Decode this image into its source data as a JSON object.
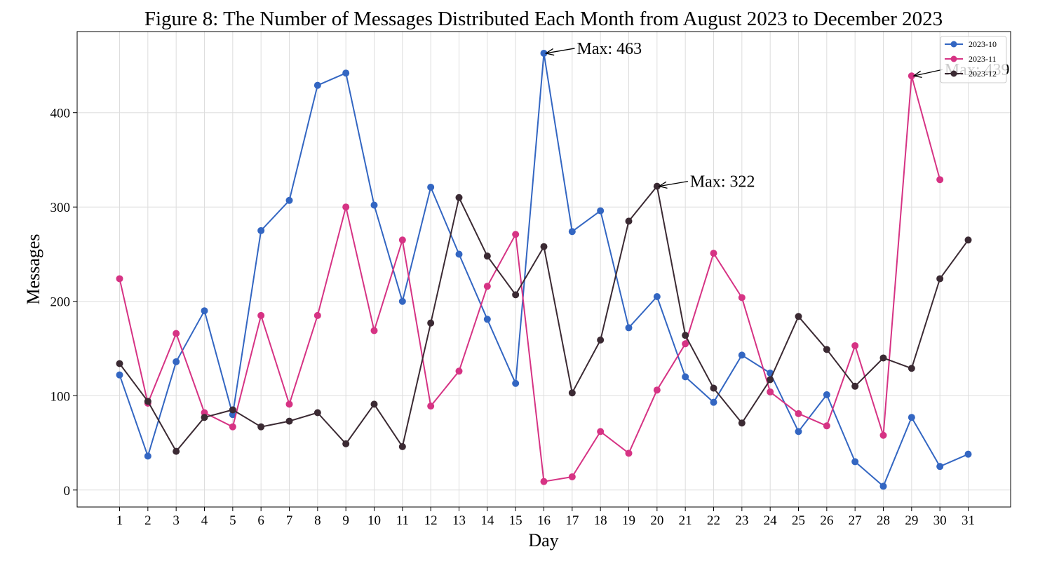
{
  "chart_data": {
    "type": "line",
    "title": "Figure 8: The Number of Messages Distributed Each Month from August 2023 to December 2023",
    "xlabel": "Day",
    "ylabel": "Messages",
    "xlim": [
      -0.5,
      32.5
    ],
    "ylim": [
      -18,
      486
    ],
    "x_ticks": [
      1,
      2,
      3,
      4,
      5,
      6,
      7,
      8,
      9,
      10,
      11,
      12,
      13,
      14,
      15,
      16,
      17,
      18,
      19,
      20,
      21,
      22,
      23,
      24,
      25,
      26,
      27,
      28,
      29,
      30,
      31
    ],
    "y_ticks": [
      0,
      100,
      200,
      300,
      400
    ],
    "grid": true,
    "legend_position": "top-right",
    "series": [
      {
        "name": "2023-10",
        "color": "#3366c2",
        "x": [
          1,
          2,
          3,
          4,
          5,
          6,
          7,
          8,
          9,
          10,
          11,
          12,
          13,
          14,
          15,
          16,
          17,
          18,
          19,
          20,
          21,
          22,
          23,
          24,
          25,
          26,
          27,
          28,
          29,
          30,
          31
        ],
        "values": [
          122,
          36,
          136,
          190,
          80,
          275,
          307,
          429,
          442,
          302,
          200,
          321,
          250,
          181,
          113,
          463,
          274,
          296,
          172,
          205,
          120,
          93,
          143,
          124,
          62,
          101,
          30,
          4,
          77,
          25,
          38
        ]
      },
      {
        "name": "2023-11",
        "color": "#d63384",
        "x": [
          1,
          2,
          3,
          4,
          5,
          6,
          7,
          8,
          9,
          10,
          11,
          12,
          13,
          14,
          15,
          16,
          17,
          18,
          19,
          20,
          21,
          22,
          23,
          24,
          25,
          26,
          27,
          28,
          29,
          30
        ],
        "values": [
          224,
          92,
          166,
          82,
          67,
          185,
          91,
          185,
          300,
          169,
          265,
          89,
          126,
          216,
          271,
          9,
          14,
          62,
          39,
          106,
          155,
          251,
          204,
          104,
          81,
          68,
          153,
          58,
          439,
          329
        ]
      },
      {
        "name": "2023-12",
        "color": "#3b2a33",
        "x": [
          1,
          2,
          3,
          4,
          5,
          6,
          7,
          8,
          9,
          10,
          11,
          12,
          13,
          14,
          15,
          16,
          17,
          18,
          19,
          20,
          21,
          22,
          23,
          24,
          25,
          26,
          27,
          28,
          29,
          30,
          31
        ],
        "values": [
          134,
          94,
          41,
          77,
          85,
          67,
          73,
          82,
          49,
          91,
          46,
          177,
          310,
          248,
          207,
          258,
          103,
          159,
          285,
          322,
          164,
          108,
          71,
          117,
          184,
          149,
          110,
          140,
          129,
          224,
          265
        ]
      }
    ],
    "annotations": [
      {
        "series": "2023-10",
        "x": 16,
        "y": 463,
        "text": "Max: 463"
      },
      {
        "series": "2023-11",
        "x": 29,
        "y": 439,
        "text": "Max: 439"
      },
      {
        "series": "2023-12",
        "x": 20,
        "y": 322,
        "text": "Max: 322"
      }
    ]
  }
}
